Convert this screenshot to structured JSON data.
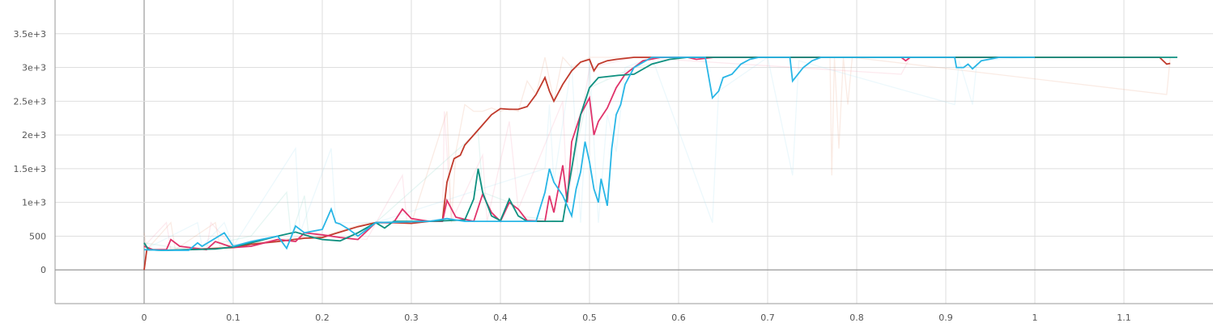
{
  "chart_data": {
    "type": "line",
    "xlim": [
      -0.1,
      1.2
    ],
    "ylim": [
      -500,
      4000
    ],
    "x_ticks": [
      0,
      0.1,
      0.2,
      0.3,
      0.4,
      0.5,
      0.6,
      0.7,
      0.8,
      0.9,
      1,
      1.1
    ],
    "x_tick_labels": [
      "0",
      "0.1",
      "0.2",
      "0.3",
      "0.4",
      "0.5",
      "0.6",
      "0.7",
      "0.8",
      "0.9",
      "1",
      "1.1"
    ],
    "y_ticks": [
      0,
      500,
      1000,
      1500,
      2000,
      2500,
      3000,
      3500
    ],
    "y_tick_labels": [
      "0",
      "500",
      "1e+3",
      "1.5e+3",
      "2e+3",
      "2.5e+3",
      "3e+3",
      "3.5e+3"
    ],
    "grid": true,
    "legend": "none",
    "series": [
      {
        "color": "#c0392b",
        "points": [
          [
            0,
            0
          ],
          [
            0.003,
            300
          ],
          [
            0.02,
            290
          ],
          [
            0.05,
            300
          ],
          [
            0.08,
            320
          ],
          [
            0.1,
            330
          ],
          [
            0.12,
            380
          ],
          [
            0.15,
            420
          ],
          [
            0.18,
            470
          ],
          [
            0.2,
            480
          ],
          [
            0.22,
            560
          ],
          [
            0.24,
            640
          ],
          [
            0.26,
            700
          ],
          [
            0.28,
            700
          ],
          [
            0.3,
            690
          ],
          [
            0.32,
            720
          ],
          [
            0.335,
            740
          ],
          [
            0.34,
            1300
          ],
          [
            0.348,
            1650
          ],
          [
            0.355,
            1700
          ],
          [
            0.36,
            1850
          ],
          [
            0.37,
            2000
          ],
          [
            0.38,
            2150
          ],
          [
            0.39,
            2300
          ],
          [
            0.4,
            2390
          ],
          [
            0.41,
            2380
          ],
          [
            0.42,
            2380
          ],
          [
            0.43,
            2420
          ],
          [
            0.44,
            2600
          ],
          [
            0.45,
            2850
          ],
          [
            0.455,
            2650
          ],
          [
            0.46,
            2500
          ],
          [
            0.47,
            2750
          ],
          [
            0.48,
            2950
          ],
          [
            0.49,
            3080
          ],
          [
            0.5,
            3120
          ],
          [
            0.505,
            2950
          ],
          [
            0.51,
            3050
          ],
          [
            0.52,
            3100
          ],
          [
            0.53,
            3120
          ],
          [
            0.55,
            3150
          ],
          [
            1.14,
            3150
          ],
          [
            1.148,
            3050
          ],
          [
            1.152,
            3060
          ]
        ]
      },
      {
        "color": "#e8a384",
        "raw": true,
        "points": [
          [
            0,
            550
          ],
          [
            0.003,
            300
          ],
          [
            0.03,
            700
          ],
          [
            0.035,
            300
          ],
          [
            0.08,
            700
          ],
          [
            0.085,
            350
          ],
          [
            0.2,
            500
          ],
          [
            0.25,
            700
          ],
          [
            0.3,
            690
          ],
          [
            0.34,
            2350
          ],
          [
            0.345,
            700
          ],
          [
            0.35,
            1750
          ],
          [
            0.36,
            2450
          ],
          [
            0.37,
            2350
          ],
          [
            0.38,
            2350
          ],
          [
            0.39,
            2400
          ],
          [
            0.4,
            2350
          ],
          [
            0.41,
            2400
          ],
          [
            0.42,
            2350
          ],
          [
            0.43,
            2800
          ],
          [
            0.44,
            2600
          ],
          [
            0.45,
            3150
          ],
          [
            0.46,
            2500
          ],
          [
            0.47,
            3150
          ],
          [
            0.48,
            3000
          ],
          [
            0.5,
            3150
          ],
          [
            0.55,
            3150
          ],
          [
            0.77,
            3150
          ],
          [
            0.772,
            1400
          ],
          [
            0.775,
            3150
          ],
          [
            0.78,
            1800
          ],
          [
            0.785,
            3150
          ],
          [
            0.79,
            2450
          ],
          [
            0.795,
            3150
          ],
          [
            1.148,
            2600
          ],
          [
            1.152,
            3150
          ]
        ]
      },
      {
        "color": "#e0336b",
        "points": [
          [
            0,
            350
          ],
          [
            0.01,
            300
          ],
          [
            0.025,
            300
          ],
          [
            0.03,
            450
          ],
          [
            0.04,
            350
          ],
          [
            0.07,
            300
          ],
          [
            0.08,
            420
          ],
          [
            0.1,
            330
          ],
          [
            0.12,
            350
          ],
          [
            0.15,
            450
          ],
          [
            0.17,
            420
          ],
          [
            0.18,
            550
          ],
          [
            0.2,
            520
          ],
          [
            0.22,
            480
          ],
          [
            0.24,
            450
          ],
          [
            0.26,
            700
          ],
          [
            0.28,
            700
          ],
          [
            0.29,
            900
          ],
          [
            0.3,
            760
          ],
          [
            0.32,
            720
          ],
          [
            0.335,
            720
          ],
          [
            0.34,
            1030
          ],
          [
            0.35,
            780
          ],
          [
            0.37,
            720
          ],
          [
            0.38,
            1120
          ],
          [
            0.39,
            850
          ],
          [
            0.4,
            720
          ],
          [
            0.41,
            1000
          ],
          [
            0.42,
            900
          ],
          [
            0.43,
            730
          ],
          [
            0.45,
            720
          ],
          [
            0.455,
            1100
          ],
          [
            0.46,
            850
          ],
          [
            0.47,
            1550
          ],
          [
            0.475,
            1000
          ],
          [
            0.48,
            1900
          ],
          [
            0.49,
            2300
          ],
          [
            0.5,
            2550
          ],
          [
            0.505,
            2000
          ],
          [
            0.51,
            2200
          ],
          [
            0.52,
            2400
          ],
          [
            0.53,
            2700
          ],
          [
            0.54,
            2900
          ],
          [
            0.56,
            3100
          ],
          [
            0.58,
            3150
          ],
          [
            0.61,
            3150
          ],
          [
            0.62,
            3120
          ],
          [
            0.64,
            3150
          ],
          [
            0.85,
            3150
          ],
          [
            0.855,
            3100
          ],
          [
            0.86,
            3150
          ],
          [
            0.98,
            3150
          ]
        ]
      },
      {
        "color": "#f4a0b8",
        "raw": true,
        "points": [
          [
            0,
            350
          ],
          [
            0.025,
            700
          ],
          [
            0.03,
            300
          ],
          [
            0.07,
            300
          ],
          [
            0.075,
            700
          ],
          [
            0.1,
            330
          ],
          [
            0.15,
            450
          ],
          [
            0.2,
            520
          ],
          [
            0.25,
            450
          ],
          [
            0.29,
            1400
          ],
          [
            0.295,
            700
          ],
          [
            0.335,
            720
          ],
          [
            0.337,
            2350
          ],
          [
            0.345,
            720
          ],
          [
            0.38,
            1700
          ],
          [
            0.385,
            720
          ],
          [
            0.41,
            2200
          ],
          [
            0.42,
            900
          ],
          [
            0.47,
            2500
          ],
          [
            0.475,
            1000
          ],
          [
            0.5,
            3000
          ],
          [
            0.55,
            3150
          ],
          [
            0.85,
            2900
          ],
          [
            0.86,
            3150
          ],
          [
            0.98,
            3150
          ]
        ]
      },
      {
        "color": "#0f9080",
        "points": [
          [
            0,
            400
          ],
          [
            0.005,
            300
          ],
          [
            0.02,
            290
          ],
          [
            0.05,
            300
          ],
          [
            0.08,
            310
          ],
          [
            0.1,
            340
          ],
          [
            0.12,
            400
          ],
          [
            0.15,
            500
          ],
          [
            0.17,
            560
          ],
          [
            0.19,
            480
          ],
          [
            0.2,
            450
          ],
          [
            0.22,
            430
          ],
          [
            0.24,
            550
          ],
          [
            0.26,
            700
          ],
          [
            0.27,
            620
          ],
          [
            0.28,
            720
          ],
          [
            0.32,
            720
          ],
          [
            0.36,
            740
          ],
          [
            0.37,
            1050
          ],
          [
            0.375,
            1500
          ],
          [
            0.38,
            1150
          ],
          [
            0.39,
            800
          ],
          [
            0.4,
            730
          ],
          [
            0.41,
            1050
          ],
          [
            0.42,
            800
          ],
          [
            0.43,
            720
          ],
          [
            0.47,
            720
          ],
          [
            0.48,
            1500
          ],
          [
            0.49,
            2300
          ],
          [
            0.5,
            2700
          ],
          [
            0.51,
            2850
          ],
          [
            0.53,
            2880
          ],
          [
            0.55,
            2900
          ],
          [
            0.57,
            3050
          ],
          [
            0.59,
            3120
          ],
          [
            0.61,
            3150
          ],
          [
            1.16,
            3150
          ]
        ]
      },
      {
        "color": "#8fd6c9",
        "raw": true,
        "points": [
          [
            0,
            400
          ],
          [
            0.05,
            300
          ],
          [
            0.12,
            500
          ],
          [
            0.16,
            1150
          ],
          [
            0.165,
            500
          ],
          [
            0.18,
            1100
          ],
          [
            0.185,
            480
          ],
          [
            0.22,
            430
          ],
          [
            0.26,
            700
          ],
          [
            0.375,
            2050
          ],
          [
            0.38,
            1150
          ],
          [
            0.41,
            1000
          ],
          [
            0.42,
            800
          ],
          [
            0.47,
            720
          ],
          [
            0.48,
            1500
          ],
          [
            0.5,
            2700
          ],
          [
            0.55,
            3000
          ],
          [
            0.6,
            3150
          ],
          [
            1.16,
            3150
          ]
        ]
      },
      {
        "color": "#29b6e6",
        "points": [
          [
            0,
            300
          ],
          [
            0.02,
            290
          ],
          [
            0.05,
            290
          ],
          [
            0.06,
            400
          ],
          [
            0.065,
            350
          ],
          [
            0.09,
            550
          ],
          [
            0.1,
            350
          ],
          [
            0.12,
            420
          ],
          [
            0.15,
            500
          ],
          [
            0.16,
            320
          ],
          [
            0.17,
            650
          ],
          [
            0.18,
            550
          ],
          [
            0.2,
            600
          ],
          [
            0.21,
            900
          ],
          [
            0.215,
            700
          ],
          [
            0.22,
            680
          ],
          [
            0.23,
            600
          ],
          [
            0.24,
            500
          ],
          [
            0.25,
            600
          ],
          [
            0.26,
            700
          ],
          [
            0.32,
            720
          ],
          [
            0.34,
            760
          ],
          [
            0.36,
            720
          ],
          [
            0.4,
            720
          ],
          [
            0.44,
            720
          ],
          [
            0.45,
            1150
          ],
          [
            0.455,
            1500
          ],
          [
            0.46,
            1300
          ],
          [
            0.47,
            1100
          ],
          [
            0.48,
            800
          ],
          [
            0.485,
            1200
          ],
          [
            0.49,
            1450
          ],
          [
            0.495,
            1900
          ],
          [
            0.5,
            1600
          ],
          [
            0.505,
            1200
          ],
          [
            0.51,
            1000
          ],
          [
            0.513,
            1350
          ],
          [
            0.52,
            950
          ],
          [
            0.525,
            1800
          ],
          [
            0.53,
            2300
          ],
          [
            0.535,
            2450
          ],
          [
            0.54,
            2750
          ],
          [
            0.55,
            3000
          ],
          [
            0.57,
            3150
          ],
          [
            0.63,
            3150
          ],
          [
            0.638,
            2550
          ],
          [
            0.645,
            2650
          ],
          [
            0.65,
            2850
          ],
          [
            0.66,
            2900
          ],
          [
            0.67,
            3050
          ],
          [
            0.68,
            3120
          ],
          [
            0.69,
            3150
          ],
          [
            0.725,
            3150
          ],
          [
            0.728,
            2800
          ],
          [
            0.74,
            3000
          ],
          [
            0.75,
            3100
          ],
          [
            0.76,
            3150
          ],
          [
            0.91,
            3150
          ],
          [
            0.912,
            3000
          ],
          [
            0.92,
            3000
          ],
          [
            0.925,
            3050
          ],
          [
            0.93,
            2980
          ],
          [
            0.94,
            3100
          ],
          [
            0.96,
            3150
          ],
          [
            1.0,
            3150
          ]
        ]
      },
      {
        "color": "#a8def2",
        "raw": true,
        "points": [
          [
            0,
            300
          ],
          [
            0.06,
            700
          ],
          [
            0.065,
            350
          ],
          [
            0.09,
            700
          ],
          [
            0.1,
            350
          ],
          [
            0.17,
            1800
          ],
          [
            0.175,
            550
          ],
          [
            0.21,
            1800
          ],
          [
            0.215,
            700
          ],
          [
            0.26,
            700
          ],
          [
            0.45,
            1500
          ],
          [
            0.455,
            2450
          ],
          [
            0.46,
            1300
          ],
          [
            0.48,
            3050
          ],
          [
            0.49,
            700
          ],
          [
            0.5,
            3100
          ],
          [
            0.51,
            700
          ],
          [
            0.52,
            2300
          ],
          [
            0.53,
            1750
          ],
          [
            0.54,
            3000
          ],
          [
            0.57,
            3150
          ],
          [
            0.638,
            700
          ],
          [
            0.645,
            2650
          ],
          [
            0.7,
            3150
          ],
          [
            0.728,
            1400
          ],
          [
            0.735,
            3100
          ],
          [
            0.91,
            2450
          ],
          [
            0.915,
            3100
          ],
          [
            0.93,
            2450
          ],
          [
            0.935,
            3100
          ],
          [
            1.0,
            3150
          ]
        ]
      }
    ]
  }
}
